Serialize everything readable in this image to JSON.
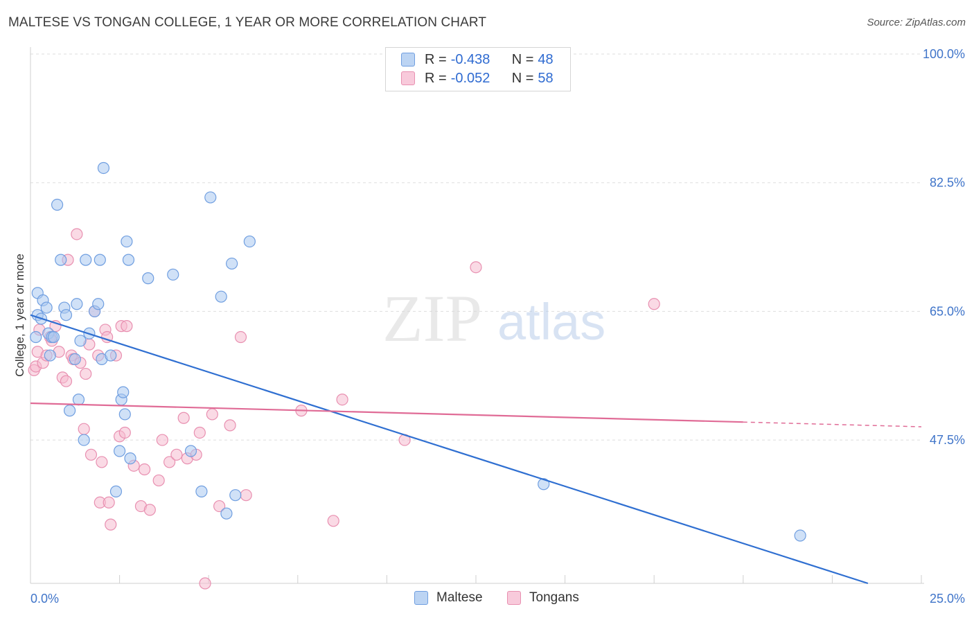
{
  "title": "MALTESE VS TONGAN COLLEGE, 1 YEAR OR MORE CORRELATION CHART",
  "source": "Source: ZipAtlas.com",
  "watermark": {
    "zip": "ZIP",
    "atlas": "atlas"
  },
  "legend": {
    "maltese": {
      "r_label": "R =",
      "r_value": "-0.438",
      "n_label": "N =",
      "n_value": "48"
    },
    "tongans": {
      "r_label": "R =",
      "r_value": "-0.052",
      "n_label": "N =",
      "n_value": "58"
    }
  },
  "bottom_legend": {
    "maltese": "Maltese",
    "tongans": "Tongans"
  },
  "colors": {
    "maltese_fill": "#aac8f0",
    "maltese_stroke": "#6f9ee0",
    "maltese_line": "#2f6fd1",
    "tongans_fill": "#f6bcd0",
    "tongans_stroke": "#e88fb0",
    "tongans_line": "#e06b96",
    "tick_text": "#3f74c9",
    "grid": "#dddddd"
  },
  "chart_data": {
    "type": "scatter",
    "title": "MALTESE VS TONGAN COLLEGE, 1 YEAR OR MORE CORRELATION CHART",
    "xlabel": "",
    "ylabel": "College, 1 year or more",
    "xlim": [
      0,
      25
    ],
    "ylim": [
      28,
      100
    ],
    "x_tick_labels": [
      "0.0%",
      "25.0%"
    ],
    "y_ticks": [
      100,
      82.5,
      65,
      47.5
    ],
    "y_tick_labels": [
      "100.0%",
      "82.5%",
      "65.0%",
      "47.5%"
    ],
    "grid": "horizontal dashed",
    "series": [
      {
        "name": "Maltese",
        "points": [
          [
            0.15,
            61.5
          ],
          [
            0.2,
            67.5
          ],
          [
            0.2,
            64.5
          ],
          [
            0.3,
            64.0
          ],
          [
            0.35,
            66.5
          ],
          [
            0.45,
            65.5
          ],
          [
            0.5,
            62.0
          ],
          [
            0.55,
            59.0
          ],
          [
            0.6,
            61.5
          ],
          [
            0.65,
            61.5
          ],
          [
            0.75,
            79.5
          ],
          [
            0.85,
            72.0
          ],
          [
            0.95,
            65.5
          ],
          [
            1.0,
            64.5
          ],
          [
            1.1,
            51.5
          ],
          [
            1.25,
            58.5
          ],
          [
            1.3,
            66.0
          ],
          [
            1.35,
            53.0
          ],
          [
            1.4,
            61.0
          ],
          [
            1.5,
            47.5
          ],
          [
            1.55,
            72.0
          ],
          [
            1.65,
            62.0
          ],
          [
            1.8,
            65.0
          ],
          [
            1.9,
            66.0
          ],
          [
            1.95,
            72.0
          ],
          [
            2.0,
            58.5
          ],
          [
            2.05,
            84.5
          ],
          [
            2.25,
            59.0
          ],
          [
            2.4,
            40.5
          ],
          [
            2.5,
            46.0
          ],
          [
            2.55,
            53.0
          ],
          [
            2.6,
            54.0
          ],
          [
            2.65,
            51.0
          ],
          [
            2.7,
            74.5
          ],
          [
            2.75,
            72.0
          ],
          [
            2.8,
            45.0
          ],
          [
            3.3,
            69.5
          ],
          [
            4.0,
            70.0
          ],
          [
            4.5,
            46.0
          ],
          [
            4.8,
            40.5
          ],
          [
            5.05,
            80.5
          ],
          [
            5.35,
            67.0
          ],
          [
            5.5,
            37.5
          ],
          [
            5.65,
            71.5
          ],
          [
            5.75,
            40.0
          ],
          [
            6.15,
            74.5
          ],
          [
            14.4,
            41.5
          ],
          [
            21.6,
            34.5
          ]
        ]
      },
      {
        "name": "Tongans",
        "points": [
          [
            0.1,
            57.0
          ],
          [
            0.15,
            57.5
          ],
          [
            0.2,
            59.5
          ],
          [
            0.25,
            62.5
          ],
          [
            0.35,
            58.0
          ],
          [
            0.45,
            59.0
          ],
          [
            0.55,
            61.5
          ],
          [
            0.6,
            61.0
          ],
          [
            0.7,
            63.0
          ],
          [
            0.8,
            59.5
          ],
          [
            0.9,
            56.0
          ],
          [
            1.0,
            55.5
          ],
          [
            1.05,
            72.0
          ],
          [
            1.15,
            59.0
          ],
          [
            1.2,
            58.5
          ],
          [
            1.3,
            75.5
          ],
          [
            1.4,
            58.0
          ],
          [
            1.5,
            49.0
          ],
          [
            1.55,
            56.5
          ],
          [
            1.65,
            60.5
          ],
          [
            1.7,
            45.5
          ],
          [
            1.8,
            65.0
          ],
          [
            1.9,
            59.0
          ],
          [
            1.95,
            39.0
          ],
          [
            2.0,
            44.5
          ],
          [
            2.1,
            62.5
          ],
          [
            2.15,
            61.5
          ],
          [
            2.2,
            39.0
          ],
          [
            2.25,
            36.0
          ],
          [
            2.4,
            59.0
          ],
          [
            2.5,
            48.0
          ],
          [
            2.55,
            63.0
          ],
          [
            2.65,
            48.5
          ],
          [
            2.7,
            63.0
          ],
          [
            2.9,
            44.0
          ],
          [
            3.1,
            38.5
          ],
          [
            3.2,
            43.5
          ],
          [
            3.35,
            38.0
          ],
          [
            3.6,
            42.0
          ],
          [
            3.7,
            47.5
          ],
          [
            3.9,
            44.5
          ],
          [
            4.1,
            45.5
          ],
          [
            4.3,
            50.5
          ],
          [
            4.4,
            45.0
          ],
          [
            4.65,
            45.5
          ],
          [
            4.75,
            48.5
          ],
          [
            4.9,
            28.0
          ],
          [
            5.1,
            51.0
          ],
          [
            5.3,
            38.5
          ],
          [
            5.6,
            49.5
          ],
          [
            5.9,
            61.5
          ],
          [
            6.05,
            40.0
          ],
          [
            7.6,
            51.5
          ],
          [
            8.5,
            36.5
          ],
          [
            8.75,
            53.0
          ],
          [
            10.5,
            47.5
          ],
          [
            12.5,
            71.0
          ],
          [
            17.5,
            66.0
          ]
        ]
      }
    ],
    "trend_lines": [
      {
        "series": "Maltese",
        "x0": 0.0,
        "y0": 64.5,
        "x1": 23.5,
        "y1": 28.0,
        "dashed_from": null
      },
      {
        "series": "Tongans",
        "x0": 0.0,
        "y0": 52.5,
        "x1": 25.0,
        "y1": 49.3,
        "dashed_from": 20.0
      }
    ]
  }
}
